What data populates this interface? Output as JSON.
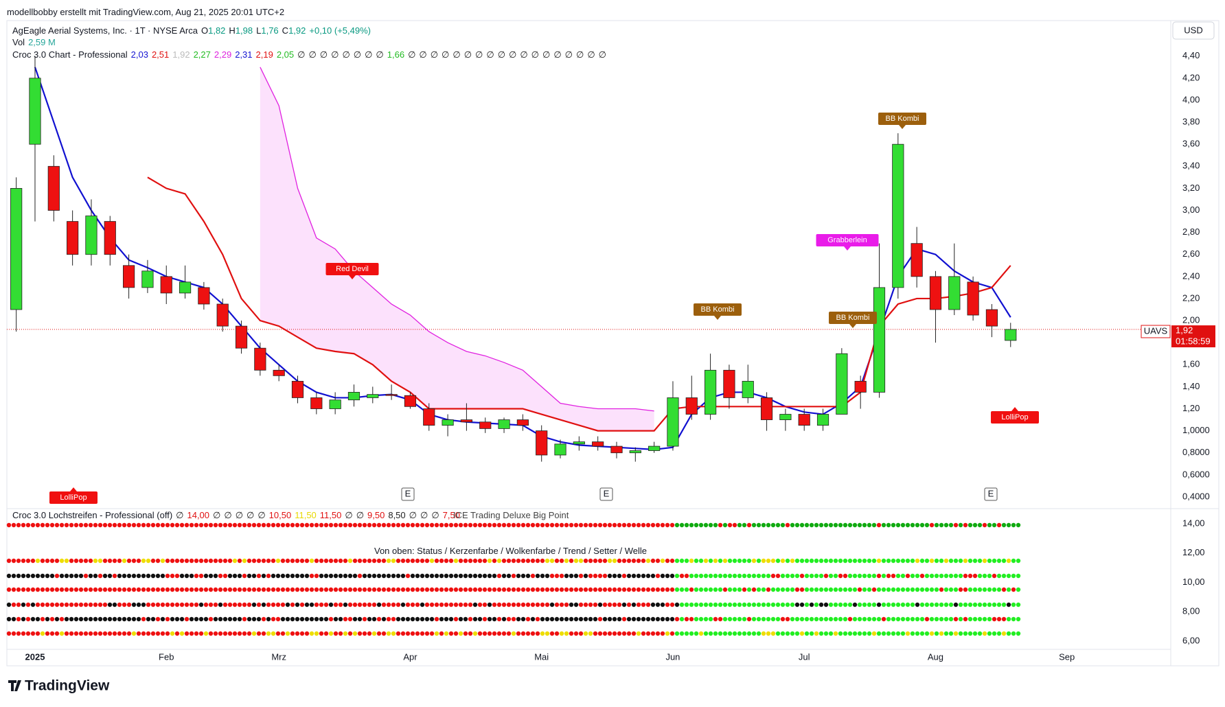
{
  "header": {
    "author_line": "modellbobby erstellt mit TradingView.com, Aug 21, 2025 20:01 UTC+2",
    "symbol": "AgEagle Aerial Systems, Inc. · 1T · NYSE Arca",
    "ohlc": [
      {
        "key": "O",
        "value": "1,82"
      },
      {
        "key": "H",
        "value": "1,98"
      },
      {
        "key": "L",
        "value": "1,76"
      },
      {
        "key": "C",
        "value": "1,92"
      }
    ],
    "change": "+0,10 (+5,49%)",
    "volume_label": "Vol",
    "volume": "2,59 M",
    "indicator_name": "Croc 3.0 Chart - Professional",
    "indicator_values": [
      {
        "text": "2,03",
        "color": "#1414d2"
      },
      {
        "text": "2,51",
        "color": "#e01010"
      },
      {
        "text": "1,92",
        "color": "#bbbbbb"
      },
      {
        "text": "2,27",
        "color": "#22bb22"
      },
      {
        "text": "2,29",
        "color": "#dd22dd"
      },
      {
        "text": "2,31",
        "color": "#1414d2"
      },
      {
        "text": "2,19",
        "color": "#e01010"
      },
      {
        "text": "2,05",
        "color": "#22bb22"
      },
      {
        "text": "∅",
        "color": "#222222"
      },
      {
        "text": "∅",
        "color": "#222222"
      },
      {
        "text": "∅",
        "color": "#222222"
      },
      {
        "text": "∅",
        "color": "#222222"
      },
      {
        "text": "∅",
        "color": "#222222"
      },
      {
        "text": "∅",
        "color": "#222222"
      },
      {
        "text": "∅",
        "color": "#222222"
      },
      {
        "text": "∅",
        "color": "#222222"
      },
      {
        "text": "1,66",
        "color": "#22bb22"
      },
      {
        "text": "∅",
        "color": "#222222"
      },
      {
        "text": "∅",
        "color": "#222222"
      },
      {
        "text": "∅",
        "color": "#222222"
      },
      {
        "text": "∅",
        "color": "#222222"
      },
      {
        "text": "∅",
        "color": "#222222"
      },
      {
        "text": "∅",
        "color": "#222222"
      },
      {
        "text": "∅",
        "color": "#222222"
      },
      {
        "text": "∅",
        "color": "#222222"
      },
      {
        "text": "∅",
        "color": "#222222"
      },
      {
        "text": "∅",
        "color": "#222222"
      },
      {
        "text": "∅",
        "color": "#222222"
      },
      {
        "text": "∅",
        "color": "#222222"
      },
      {
        "text": "∅",
        "color": "#222222"
      },
      {
        "text": "∅",
        "color": "#222222"
      },
      {
        "text": "∅",
        "color": "#222222"
      },
      {
        "text": "∅",
        "color": "#222222"
      },
      {
        "text": "∅",
        "color": "#222222"
      },
      {
        "text": "∅",
        "color": "#222222"
      }
    ],
    "currency": "USD"
  },
  "price_tag": {
    "symbol": "UAVS",
    "price": "1,92",
    "countdown": "01:58:59"
  },
  "lower_header": {
    "indicator_name": "Croc 3.0 Lochstreifen - Professional (off)",
    "indicator_values": [
      {
        "text": "∅",
        "color": "#222222"
      },
      {
        "text": "14,00",
        "color": "#e01010"
      },
      {
        "text": "∅",
        "color": "#222222"
      },
      {
        "text": "∅",
        "color": "#222222"
      },
      {
        "text": "∅",
        "color": "#222222"
      },
      {
        "text": "∅",
        "color": "#222222"
      },
      {
        "text": "∅",
        "color": "#222222"
      },
      {
        "text": "10,50",
        "color": "#e01010"
      },
      {
        "text": "11,50",
        "color": "#e8d800"
      },
      {
        "text": "11,50",
        "color": "#e01010"
      },
      {
        "text": "∅",
        "color": "#222222"
      },
      {
        "text": "∅",
        "color": "#222222"
      },
      {
        "text": "9,50",
        "color": "#e01010"
      },
      {
        "text": "8,50",
        "color": "#222222"
      },
      {
        "text": "∅",
        "color": "#222222"
      },
      {
        "text": "∅",
        "color": "#222222"
      },
      {
        "text": "∅",
        "color": "#222222"
      },
      {
        "text": "7,50",
        "color": "#e01010"
      }
    ],
    "overlay": "ICE Trading Deluxe Big Point",
    "legend_note": "Von oben: Status / Kerzenfarbe / Wolkenfarbe / Trend / Setter / Welle"
  },
  "earnings_markers": [
    "E",
    "E",
    "E"
  ],
  "annotations": [
    {
      "text": "Red Devil",
      "color": "#f01010"
    },
    {
      "text": "BB Kombi",
      "color": "#9c5f0c"
    },
    {
      "text": "Grabberlein",
      "color": "#e91ce9"
    },
    {
      "text": "BB Kombi",
      "color": "#9c5f0c"
    },
    {
      "text": "BB Kombi",
      "color": "#9c5f0c"
    },
    {
      "text": "LolliPop",
      "color": "#f01010"
    },
    {
      "text": "LolliPop",
      "color": "#f01010"
    }
  ],
  "brand": "TradingView",
  "chart_data": {
    "type": "candlestick",
    "up_color": "#33dd33",
    "down_color": "#ee1111",
    "categories": [
      null,
      "2025",
      null,
      null,
      null,
      null,
      null,
      null,
      "Feb",
      null,
      null,
      null,
      null,
      null,
      "Mrz",
      null,
      null,
      null,
      null,
      null,
      null,
      "Apr",
      null,
      null,
      null,
      null,
      null,
      null,
      "Mai",
      null,
      null,
      null,
      null,
      null,
      null,
      "Jun",
      null,
      null,
      null,
      null,
      null,
      null,
      "Jul",
      null,
      null,
      null,
      null,
      null,
      null,
      "Aug",
      null,
      null,
      null,
      null,
      null,
      null,
      "Sep",
      null,
      null,
      null,
      null,
      null
    ],
    "open": [
      2.1,
      3.6,
      3.4,
      2.9,
      2.6,
      2.9,
      2.5,
      2.3,
      2.4,
      2.25,
      2.3,
      2.15,
      1.95,
      1.75,
      1.55,
      1.45,
      1.3,
      1.2,
      1.28,
      1.3,
      1.33,
      1.32,
      1.2,
      1.05,
      1.1,
      1.08,
      1.02,
      1.1,
      1.0,
      0.78,
      0.88,
      0.9,
      0.86,
      0.8,
      0.82,
      0.86,
      1.3,
      1.15,
      1.55,
      1.3,
      1.3,
      1.1,
      1.15,
      1.05,
      1.15,
      1.45,
      1.35,
      2.3,
      2.7,
      2.4,
      2.1,
      2.35,
      2.1,
      1.82,
      null,
      null,
      null,
      null,
      null,
      null,
      null,
      null
    ],
    "high": [
      3.3,
      4.4,
      3.5,
      3.0,
      3.1,
      2.95,
      2.6,
      2.55,
      2.5,
      2.5,
      2.35,
      2.2,
      2.0,
      1.8,
      1.6,
      1.5,
      1.35,
      1.35,
      1.42,
      1.4,
      1.42,
      1.35,
      1.25,
      1.15,
      1.25,
      1.12,
      1.12,
      1.15,
      1.05,
      0.92,
      0.95,
      0.95,
      0.9,
      0.85,
      0.9,
      1.45,
      1.5,
      1.7,
      1.6,
      1.6,
      1.35,
      1.2,
      1.2,
      1.2,
      1.75,
      1.5,
      2.7,
      3.7,
      2.85,
      2.45,
      2.7,
      2.4,
      2.15,
      1.98,
      null,
      null,
      null,
      null,
      null,
      null,
      null,
      null
    ],
    "low": [
      1.9,
      2.9,
      2.9,
      2.5,
      2.5,
      2.5,
      2.2,
      2.25,
      2.15,
      2.2,
      2.1,
      1.9,
      1.7,
      1.5,
      1.45,
      1.25,
      1.15,
      1.15,
      1.22,
      1.25,
      1.28,
      1.2,
      1.0,
      0.95,
      1.0,
      0.98,
      0.98,
      1.0,
      0.72,
      0.75,
      0.82,
      0.82,
      0.75,
      0.72,
      0.8,
      0.82,
      1.1,
      1.1,
      1.2,
      1.25,
      1.0,
      1.0,
      1.0,
      1.0,
      1.15,
      1.2,
      1.3,
      2.2,
      2.3,
      1.8,
      2.05,
      2.0,
      1.85,
      1.76,
      null,
      null,
      null,
      null,
      null,
      null,
      null,
      null
    ],
    "close": [
      3.2,
      4.2,
      3.0,
      2.6,
      2.95,
      2.6,
      2.3,
      2.45,
      2.25,
      2.35,
      2.15,
      1.95,
      1.75,
      1.55,
      1.5,
      1.3,
      1.2,
      1.28,
      1.35,
      1.33,
      1.32,
      1.22,
      1.05,
      1.1,
      1.08,
      1.02,
      1.1,
      1.05,
      0.78,
      0.88,
      0.9,
      0.86,
      0.8,
      0.82,
      0.86,
      1.3,
      1.15,
      1.55,
      1.3,
      1.45,
      1.1,
      1.15,
      1.05,
      1.15,
      1.7,
      1.35,
      2.3,
      3.6,
      2.4,
      2.1,
      2.4,
      2.05,
      1.95,
      1.92,
      null,
      null,
      null,
      null,
      null,
      null,
      null,
      null
    ],
    "lines": [
      {
        "color": "#1010d0",
        "values": [
          null,
          4.3,
          3.8,
          3.3,
          3.0,
          2.75,
          2.55,
          2.48,
          2.4,
          2.35,
          2.3,
          2.15,
          1.95,
          1.75,
          1.6,
          1.45,
          1.35,
          1.3,
          1.3,
          1.32,
          1.33,
          1.28,
          1.15,
          1.1,
          1.08,
          1.07,
          1.06,
          1.05,
          0.95,
          0.9,
          0.87,
          0.86,
          0.85,
          0.84,
          0.83,
          0.85,
          1.15,
          1.3,
          1.35,
          1.35,
          1.3,
          1.22,
          1.17,
          1.15,
          1.25,
          1.4,
          1.9,
          2.4,
          2.65,
          2.6,
          2.45,
          2.35,
          2.3,
          2.03,
          null,
          null,
          null,
          null,
          null,
          null,
          null,
          null
        ]
      },
      {
        "color": "#e01010",
        "values": [
          null,
          null,
          null,
          null,
          null,
          null,
          null,
          3.3,
          3.2,
          3.15,
          2.9,
          2.6,
          2.2,
          2.0,
          1.95,
          1.85,
          1.75,
          1.72,
          1.7,
          1.6,
          1.45,
          1.35,
          1.2,
          1.2,
          1.2,
          1.2,
          1.2,
          1.2,
          1.15,
          1.1,
          1.05,
          1.0,
          1.0,
          1.0,
          1.0,
          1.2,
          1.22,
          1.22,
          1.22,
          1.22,
          1.22,
          1.22,
          1.22,
          1.22,
          1.22,
          1.35,
          1.95,
          2.15,
          2.2,
          2.2,
          2.22,
          2.25,
          2.3,
          2.5,
          null,
          null,
          null,
          null,
          null,
          null,
          null,
          null
        ]
      },
      {
        "color": "#e020e0",
        "values": [
          null,
          null,
          null,
          null,
          null,
          null,
          null,
          null,
          null,
          null,
          null,
          null,
          null,
          4.3,
          3.95,
          3.2,
          2.75,
          2.65,
          2.45,
          2.3,
          2.15,
          2.05,
          1.9,
          1.8,
          1.72,
          1.68,
          1.62,
          1.55,
          1.4,
          1.25,
          1.22,
          1.2,
          1.2,
          1.2,
          1.18,
          null,
          null,
          null,
          null,
          null,
          null,
          null,
          null,
          null,
          null,
          null,
          null,
          null,
          null,
          null,
          null,
          null,
          null,
          null,
          null,
          null,
          null,
          null,
          null,
          null,
          null,
          null
        ]
      }
    ],
    "cloud_color": "#fbd9fb",
    "last_price": 1.92,
    "ylim": [
      0.3,
      4.66
    ],
    "yticks": [
      {
        "value": 0.4,
        "label": "0,4000"
      },
      {
        "value": 0.6,
        "label": "0,6000"
      },
      {
        "value": 0.8,
        "label": "0,8000"
      },
      {
        "value": 1.0,
        "label": "1,0000"
      },
      {
        "value": 1.2,
        "label": "1,20"
      },
      {
        "value": 1.4,
        "label": "1,40"
      },
      {
        "value": 1.6,
        "label": "1,60"
      },
      {
        "value": 2.0,
        "label": "2,00"
      },
      {
        "value": 2.2,
        "label": "2,20"
      },
      {
        "value": 2.4,
        "label": "2,40"
      },
      {
        "value": 2.6,
        "label": "2,60"
      },
      {
        "value": 2.8,
        "label": "2,80"
      },
      {
        "value": 3.0,
        "label": "3,00"
      },
      {
        "value": 3.2,
        "label": "3,20"
      },
      {
        "value": 3.4,
        "label": "3,40"
      },
      {
        "value": 3.6,
        "label": "3,60"
      },
      {
        "value": 3.8,
        "label": "3,80"
      },
      {
        "value": 4.0,
        "label": "4,00"
      },
      {
        "value": 4.2,
        "label": "4,20"
      },
      {
        "value": 4.4,
        "label": "4,40"
      }
    ],
    "lower_ylim": [
      5.25,
      14.84
    ],
    "lower_yticks": [
      {
        "value": 6,
        "label": "6,00"
      },
      {
        "value": 8,
        "label": "8,00"
      },
      {
        "value": 10,
        "label": "10,00"
      },
      {
        "value": 12,
        "label": "12,00"
      },
      {
        "value": 14,
        "label": "14,00"
      }
    ],
    "grid": false
  }
}
